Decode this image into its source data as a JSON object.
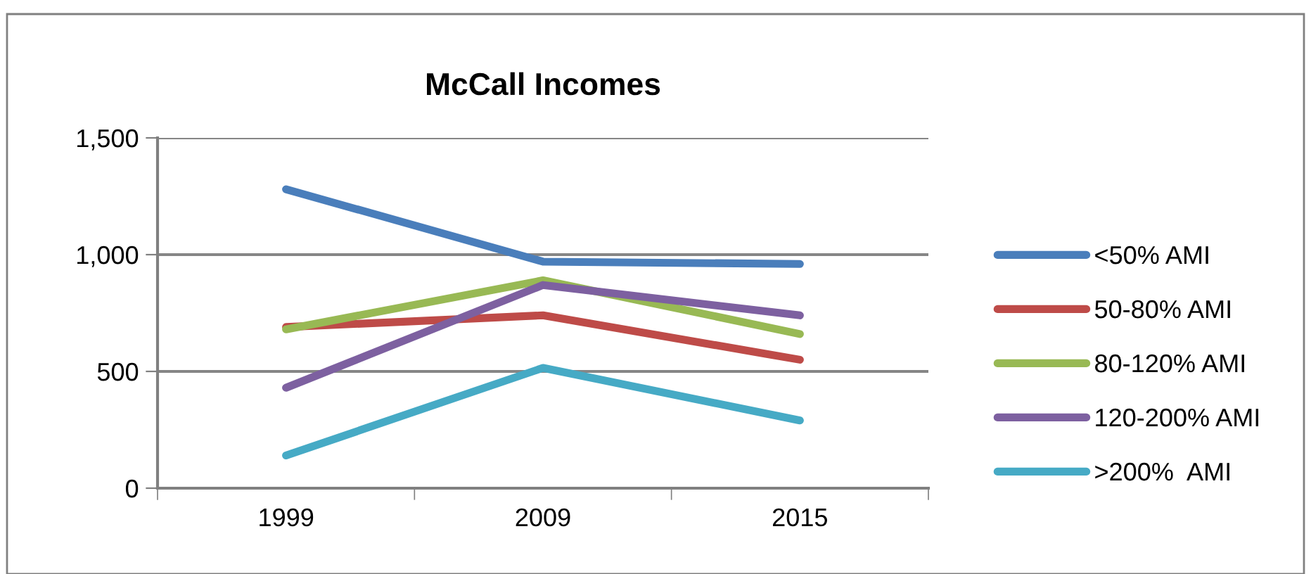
{
  "chart_data": {
    "type": "line",
    "title": "McCall Incomes",
    "categories": [
      "1999",
      "2009",
      "2015"
    ],
    "series": [
      {
        "name": "<50% AMI",
        "color": "#4a7ebb",
        "values": [
          1280,
          970,
          960
        ]
      },
      {
        "name": "50-80% AMI",
        "color": "#be4b48",
        "values": [
          690,
          740,
          550
        ]
      },
      {
        "name": "80-120% AMI",
        "color": "#98b954",
        "values": [
          680,
          890,
          660
        ]
      },
      {
        "name": "120-200% AMI",
        "color": "#7d60a0",
        "values": [
          430,
          870,
          740
        ]
      },
      {
        "name": ">200%  AMI",
        "color": "#46aac5",
        "values": [
          140,
          515,
          290
        ]
      }
    ],
    "ylim": [
      0,
      1500
    ],
    "yticks": [
      0,
      {
        "value": 500,
        "label": "500"
      },
      {
        "value": 1000,
        "label": "1,000"
      },
      {
        "value": 1500,
        "label": "1,500"
      }
    ],
    "grid": "y",
    "legend": "right",
    "marker": "none",
    "line_style": "solid"
  }
}
